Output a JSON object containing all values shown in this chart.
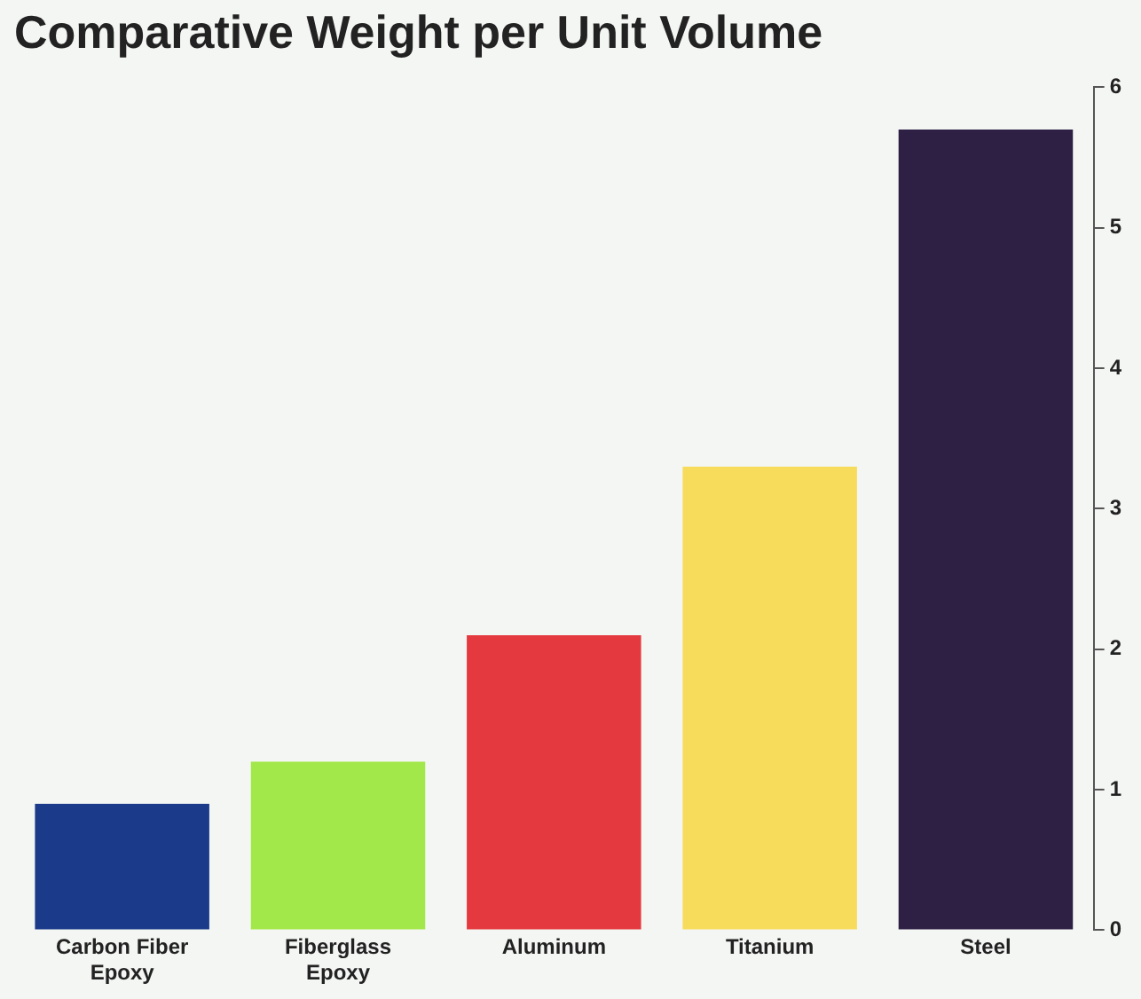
{
  "chart_data": {
    "type": "bar",
    "title": "Comparative Weight per Unit Volume",
    "categories": [
      "Carbon Fiber Epoxy",
      "Fiberglass Epoxy",
      "Aluminum",
      "Titanium",
      "Steel"
    ],
    "values": [
      0.9,
      1.2,
      2.1,
      3.3,
      5.7
    ],
    "colors": [
      "#1b3a8a",
      "#a3e84a",
      "#e43a3f",
      "#f7dc5c",
      "#2e1f45"
    ],
    "ylim": [
      0,
      6
    ],
    "yticks": [
      0,
      1,
      2,
      3,
      4,
      5,
      6
    ],
    "grid": false,
    "legend": false
  }
}
